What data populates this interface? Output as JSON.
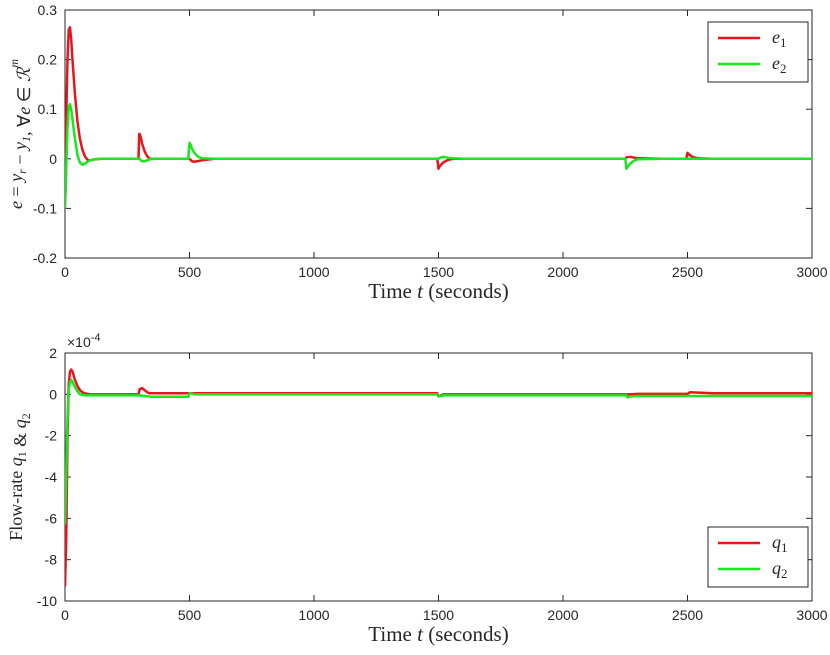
{
  "chart_data": [
    {
      "type": "line",
      "xlabel": "Time t (seconds)",
      "ylabel": "e = y_r − y_1, ∀e ∈ ℛ^m",
      "xlim": [
        0,
        3000
      ],
      "ylim": [
        -0.2,
        0.3
      ],
      "xticks": [
        "0",
        "500",
        "1000",
        "1500",
        "2000",
        "2500",
        "3000"
      ],
      "yticks": [
        "-0.2",
        "-0.1",
        "0",
        "0.1",
        "0.2",
        "0.3"
      ],
      "grid": false,
      "legend_position": "top-right",
      "series": [
        {
          "name": "e1",
          "color": "#e8161c",
          "x": [
            0,
            5,
            10,
            15,
            20,
            25,
            30,
            40,
            50,
            60,
            70,
            80,
            90,
            100,
            120,
            150,
            200,
            295,
            298,
            300,
            305,
            310,
            320,
            330,
            340,
            350,
            360,
            380,
            400,
            490,
            500,
            510,
            520,
            530,
            550,
            600,
            700,
            1000,
            1495,
            1500,
            1505,
            1520,
            1540,
            1560,
            1600,
            2000,
            2250,
            2255,
            2270,
            2300,
            2400,
            2495,
            2500,
            2505,
            2520,
            2540,
            2600,
            3000
          ],
          "y": [
            0.0,
            0.08,
            0.2,
            0.26,
            0.265,
            0.24,
            0.2,
            0.13,
            0.075,
            0.04,
            0.018,
            0.005,
            -0.002,
            -0.003,
            -0.001,
            0.0,
            0.0,
            0.0,
            0.05,
            0.05,
            0.042,
            0.03,
            0.015,
            0.005,
            0.0,
            0.0,
            0.0,
            0.0,
            0.0,
            0.0,
            0.0,
            -0.005,
            -0.006,
            -0.005,
            -0.003,
            0.0,
            0.0,
            0.0,
            0.0,
            -0.02,
            -0.015,
            -0.007,
            -0.002,
            0.0,
            0.0,
            0.0,
            0.0,
            0.003,
            0.004,
            0.001,
            0.0,
            0.0,
            0.012,
            0.009,
            0.004,
            0.001,
            0.0,
            0.0
          ]
        },
        {
          "name": "e2",
          "color": "#19e61c",
          "x": [
            0,
            3,
            6,
            10,
            15,
            20,
            25,
            30,
            40,
            50,
            60,
            70,
            80,
            90,
            100,
            120,
            150,
            200,
            300,
            305,
            310,
            320,
            330,
            340,
            360,
            400,
            495,
            500,
            505,
            510,
            520,
            530,
            540,
            550,
            600,
            1000,
            1500,
            1510,
            1520,
            1540,
            1560,
            1600,
            2000,
            2250,
            2255,
            2260,
            2270,
            2285,
            2300,
            2400,
            3000
          ],
          "y": [
            -0.1,
            -0.06,
            0.0,
            0.06,
            0.105,
            0.11,
            0.1,
            0.08,
            0.04,
            0.008,
            -0.008,
            -0.012,
            -0.01,
            -0.006,
            -0.003,
            -0.001,
            0.0,
            0.0,
            0.0,
            -0.003,
            -0.005,
            -0.005,
            -0.003,
            -0.001,
            0.0,
            0.0,
            0.0,
            0.032,
            0.028,
            0.02,
            0.012,
            0.006,
            0.003,
            0.001,
            0.0,
            0.0,
            0.0,
            0.003,
            0.004,
            0.002,
            0.001,
            0.0,
            0.0,
            0.0,
            -0.02,
            -0.016,
            -0.01,
            -0.004,
            -0.001,
            0.0,
            0.0
          ]
        }
      ]
    },
    {
      "type": "line",
      "xlabel": "Time t (seconds)",
      "ylabel": "Flow-rate q_1 & q_2",
      "y_exponent": "×10^-4",
      "xlim": [
        0,
        3000
      ],
      "ylim": [
        -10,
        2
      ],
      "xticks": [
        "0",
        "500",
        "1000",
        "1500",
        "2000",
        "2500",
        "3000"
      ],
      "yticks": [
        "-10",
        "-8",
        "-6",
        "-4",
        "-2",
        "0",
        "2"
      ],
      "grid": false,
      "legend_position": "bottom-right",
      "series": [
        {
          "name": "q1",
          "color": "#e8161c",
          "x": [
            0,
            5,
            10,
            15,
            20,
            25,
            30,
            35,
            40,
            50,
            60,
            70,
            80,
            100,
            150,
            200,
            295,
            300,
            310,
            320,
            330,
            340,
            360,
            400,
            500,
            520,
            1000,
            1495,
            1500,
            1510,
            1520,
            1600,
            2000,
            2255,
            2260,
            2300,
            2400,
            2500,
            2510,
            2600,
            3000
          ],
          "y": [
            -9.3,
            -7.0,
            -2.0,
            0.5,
            1.1,
            1.2,
            1.1,
            0.9,
            0.7,
            0.4,
            0.2,
            0.1,
            0.05,
            0.0,
            0.0,
            0.0,
            0.0,
            0.25,
            0.3,
            0.2,
            0.1,
            0.05,
            0.05,
            0.05,
            0.05,
            0.05,
            0.05,
            0.05,
            -0.1,
            -0.05,
            0.0,
            0.0,
            0.0,
            0.0,
            0.0,
            0.02,
            0.02,
            0.02,
            0.1,
            0.05,
            0.05
          ]
        },
        {
          "name": "q2",
          "color": "#19e61c",
          "x": [
            0,
            4,
            8,
            12,
            16,
            20,
            25,
            30,
            40,
            50,
            60,
            80,
            100,
            150,
            200,
            300,
            320,
            350,
            400,
            495,
            500,
            505,
            520,
            600,
            1000,
            1495,
            1500,
            1510,
            1520,
            1600,
            2000,
            2255,
            2260,
            2270,
            2300,
            2400,
            3000
          ],
          "y": [
            -6.3,
            -4.5,
            -2.0,
            -0.5,
            0.3,
            0.6,
            0.7,
            0.6,
            0.35,
            0.15,
            0.0,
            -0.05,
            -0.05,
            -0.05,
            -0.05,
            -0.05,
            -0.08,
            -0.12,
            -0.12,
            -0.12,
            0.05,
            0.05,
            0.0,
            0.0,
            0.0,
            0.0,
            -0.1,
            -0.08,
            -0.05,
            -0.05,
            -0.05,
            -0.05,
            -0.15,
            -0.1,
            -0.08,
            -0.08,
            -0.08
          ]
        }
      ]
    }
  ]
}
